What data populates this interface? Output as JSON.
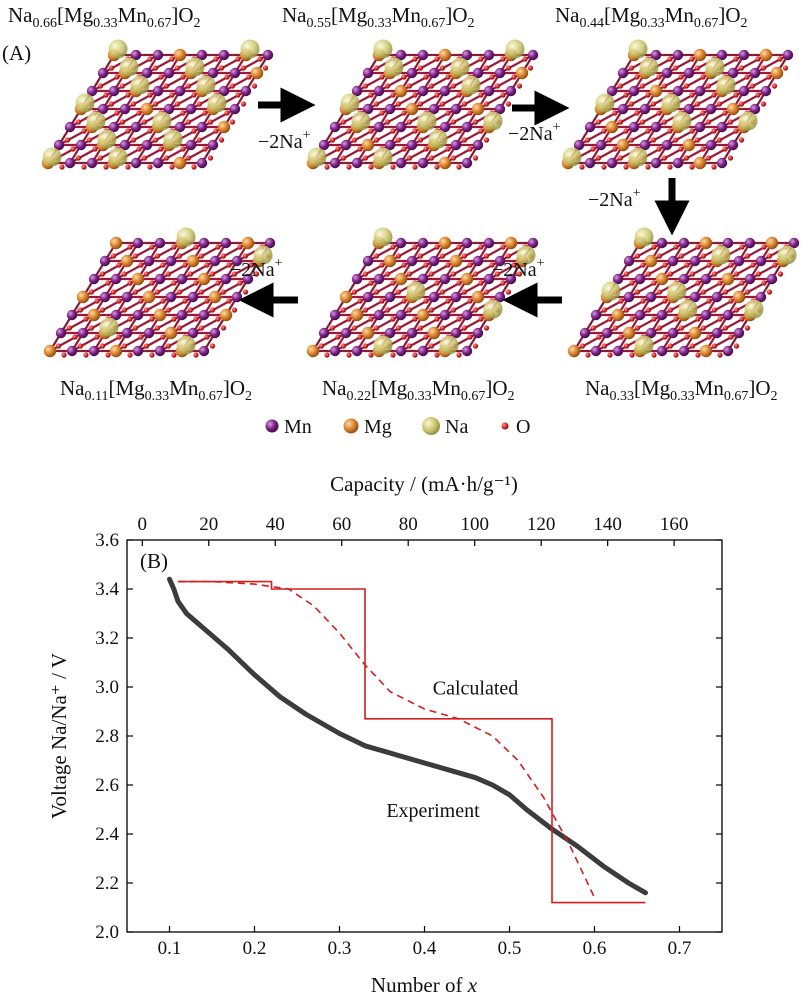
{
  "panel_a": {
    "label": "(A)",
    "formulas": [
      {
        "na": "0.66",
        "mg": "0.33",
        "mn": "0.67"
      },
      {
        "na": "0.55",
        "mg": "0.33",
        "mn": "0.67"
      },
      {
        "na": "0.44",
        "mg": "0.33",
        "mn": "0.67"
      },
      {
        "na": "0.33",
        "mg": "0.33",
        "mn": "0.67"
      },
      {
        "na": "0.22",
        "mg": "0.33",
        "mn": "0.67"
      },
      {
        "na": "0.11",
        "mg": "0.33",
        "mn": "0.67"
      }
    ],
    "formula_parts": {
      "na": "Na",
      "mg": "[Mg",
      "mn": "Mn",
      "close": "]O",
      "o_sub": "2"
    },
    "step_label": {
      "main": "−2Na",
      "sup": "+"
    },
    "legend": [
      {
        "label": "Mn",
        "color": "#7a1e82"
      },
      {
        "label": "Mg",
        "color": "#d9822b"
      },
      {
        "label": "Na",
        "color": "#c8c46a"
      },
      {
        "label": "O",
        "color": "#d42020"
      }
    ],
    "bond_color": "#9b1a3a"
  },
  "chart_data": {
    "type": "line",
    "panel_label": "(B)",
    "xlabel": "Number of x",
    "ylabel": "Voltage Na/Na⁺ / V",
    "x2label": "Capacity / (mA·h/g⁻¹)",
    "xlim": [
      0.05,
      0.75
    ],
    "ylim": [
      2.0,
      3.6
    ],
    "x2lim": [
      -4.6,
      174.4
    ],
    "xticks": [
      0.1,
      0.2,
      0.3,
      0.4,
      0.5,
      0.6,
      0.7
    ],
    "yticks": [
      2.0,
      2.2,
      2.4,
      2.6,
      2.8,
      3.0,
      3.2,
      3.4,
      3.6
    ],
    "x2ticks": [
      0,
      20,
      40,
      60,
      80,
      100,
      120,
      140,
      160
    ],
    "annotations": [
      {
        "text": "Calculated",
        "x": 0.46,
        "y": 2.97
      },
      {
        "text": "Experiment",
        "x": 0.41,
        "y": 2.47
      }
    ],
    "series": [
      {
        "style": "experiment",
        "color": "#1a1a1a",
        "x": [
          0.1,
          0.105,
          0.11,
          0.12,
          0.13,
          0.15,
          0.17,
          0.2,
          0.23,
          0.26,
          0.3,
          0.33,
          0.37,
          0.4,
          0.43,
          0.46,
          0.48,
          0.5,
          0.52,
          0.55,
          0.58,
          0.61,
          0.64,
          0.66
        ],
        "y": [
          3.44,
          3.4,
          3.35,
          3.3,
          3.27,
          3.21,
          3.15,
          3.05,
          2.96,
          2.89,
          2.81,
          2.76,
          2.72,
          2.69,
          2.66,
          2.63,
          2.6,
          2.56,
          2.5,
          2.42,
          2.35,
          2.27,
          2.2,
          2.16
        ]
      },
      {
        "style": "calculated-step",
        "color": "#d21e1e",
        "x": [
          0.11,
          0.22,
          0.22,
          0.33,
          0.33,
          0.55,
          0.55,
          0.66
        ],
        "y": [
          3.43,
          3.43,
          3.4,
          3.4,
          2.87,
          2.87,
          2.12,
          2.12
        ]
      },
      {
        "style": "calculated-dashed",
        "color": "#d21e1e",
        "x": [
          0.11,
          0.15,
          0.2,
          0.24,
          0.27,
          0.3,
          0.33,
          0.36,
          0.4,
          0.44,
          0.48,
          0.51,
          0.54,
          0.57,
          0.6
        ],
        "y": [
          3.43,
          3.43,
          3.42,
          3.4,
          3.33,
          3.22,
          3.09,
          2.98,
          2.91,
          2.87,
          2.8,
          2.7,
          2.55,
          2.36,
          2.14
        ]
      }
    ]
  }
}
